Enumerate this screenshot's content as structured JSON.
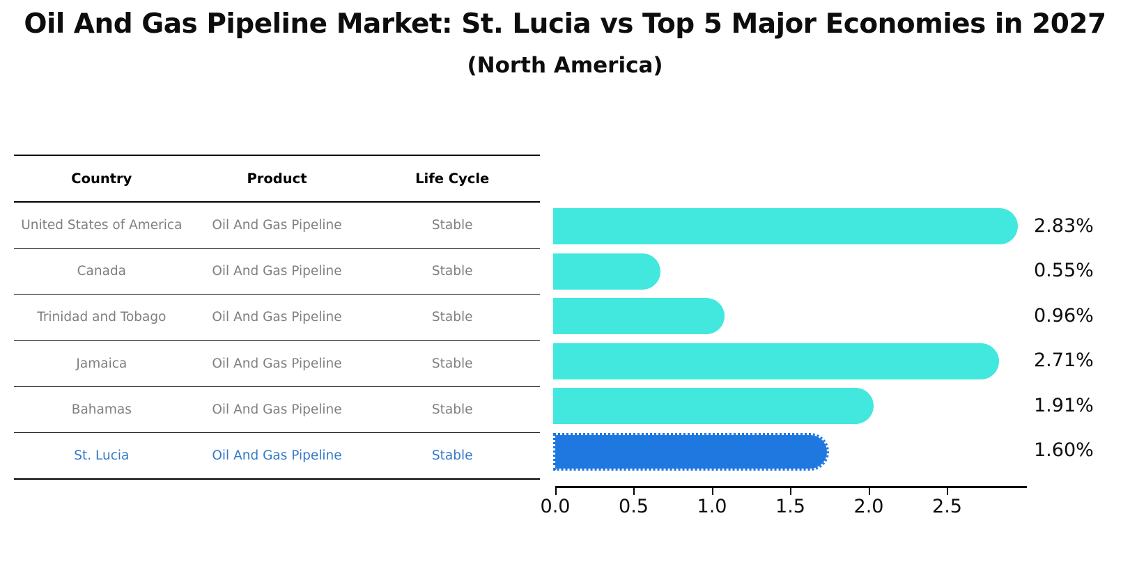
{
  "title": "Oil And Gas Pipeline Market: St. Lucia vs Top 5 Major Economies in 2027",
  "subtitle": "(North America)",
  "table": {
    "headers": {
      "country": "Country",
      "product": "Product",
      "life_cycle": "Life Cycle"
    },
    "rows": [
      {
        "country": "United States of America",
        "product": "Oil And Gas Pipeline",
        "life_cycle": "Stable",
        "value_label": "2.83%",
        "highlighted": false
      },
      {
        "country": "Canada",
        "product": "Oil And Gas Pipeline",
        "life_cycle": "Stable",
        "value_label": "0.55%",
        "highlighted": false
      },
      {
        "country": "Trinidad and Tobago",
        "product": "Oil And Gas Pipeline",
        "life_cycle": "Stable",
        "value_label": "0.96%",
        "highlighted": false
      },
      {
        "country": "Jamaica",
        "product": "Oil And Gas Pipeline",
        "life_cycle": "Stable",
        "value_label": "2.71%",
        "highlighted": false
      },
      {
        "country": "Bahamas",
        "product": "Oil And Gas Pipeline",
        "life_cycle": "Stable",
        "value_label": "1.91%",
        "highlighted": false
      },
      {
        "country": "St. Lucia",
        "product": "Oil And Gas Pipeline",
        "life_cycle": "Stable",
        "value_label": "1.60%",
        "highlighted": true
      }
    ]
  },
  "chart_data": {
    "type": "bar",
    "orientation": "horizontal",
    "title": "Oil And Gas Pipeline Market: St. Lucia vs Top 5 Major Economies in 2027 (North America)",
    "categories": [
      "United States of America",
      "Canada",
      "Trinidad and Tobago",
      "Jamaica",
      "Bahamas",
      "St. Lucia"
    ],
    "values": [
      2.83,
      0.55,
      0.96,
      2.71,
      1.91,
      1.6
    ],
    "unit": "%",
    "data_labels": [
      "2.83%",
      "0.55%",
      "0.96%",
      "2.71%",
      "1.91%",
      "1.60%"
    ],
    "xlabel": "",
    "ylabel": "",
    "xlim": [
      0,
      2.97
    ],
    "xtick_labels": [
      "0.0",
      "0.5",
      "1.0",
      "1.5",
      "2.0",
      "2.5"
    ],
    "xtick_values": [
      0.0,
      0.5,
      1.0,
      1.5,
      2.0,
      2.5
    ],
    "grid": false,
    "legend": false,
    "bar_color": "#42e8de",
    "highlight_color": "#1f77e0",
    "highlight_index": 5,
    "highlight_edge_style": "dotted",
    "highlight_text_color": "#3379c9"
  }
}
